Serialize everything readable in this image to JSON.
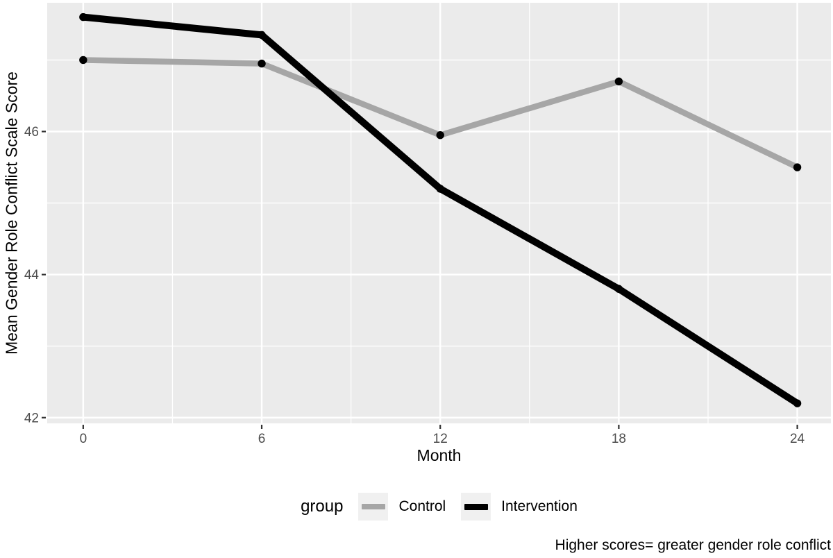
{
  "figure": {
    "caption": "Higher scores= greater gender role conflict"
  },
  "chart_data": {
    "type": "line",
    "title": "",
    "xlabel": "Month",
    "ylabel": "Mean Gender Role Conflict Scale Score",
    "legend_title": "group",
    "legend_position": "bottom",
    "x": [
      0,
      6,
      12,
      18,
      24
    ],
    "series": [
      {
        "name": "Control",
        "color": "#a6a6a6",
        "line_width": 8.5,
        "values": [
          47.0,
          46.95,
          45.95,
          46.7,
          45.5
        ]
      },
      {
        "name": "Intervention",
        "color": "#000000",
        "line_width": 10,
        "values": [
          47.6,
          47.35,
          45.2,
          43.8,
          42.2
        ]
      }
    ],
    "marker": {
      "color": "#000000",
      "radius": 5.7
    },
    "x_ticks": [
      0,
      6,
      12,
      18,
      24
    ],
    "x_minor_ticks": [
      3,
      9,
      15,
      21
    ],
    "y_ticks": [
      42,
      44,
      46
    ],
    "y_minor_ticks": [
      43,
      45,
      47
    ],
    "xlim": [
      -1.21,
      25.13
    ],
    "ylim": [
      41.92,
      47.8
    ],
    "grid": true,
    "panel_background": "#ebebeb",
    "grid_color": "#ffffff",
    "tick_color": "#333333",
    "tick_label_color": "#4d4d4d",
    "annotation": "Higher scores= greater gender role conflict"
  }
}
